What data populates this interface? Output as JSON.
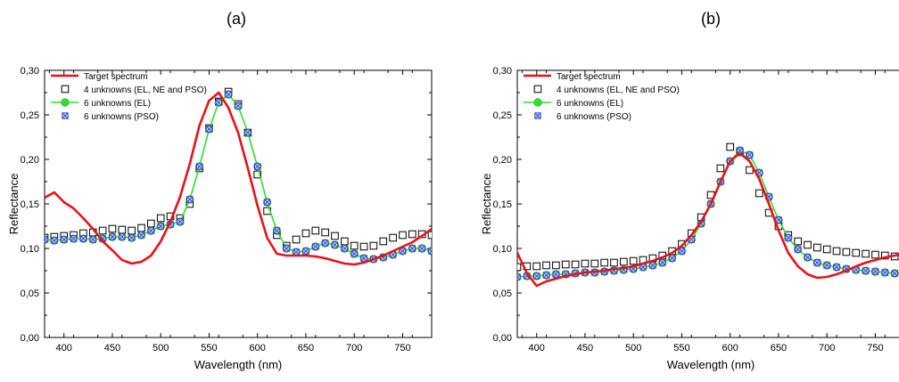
{
  "chart_data": [
    {
      "panel_label": "(a)",
      "type": "line",
      "xlabel": "Wavelength (nm)",
      "ylabel": "Reflectance",
      "xlim": [
        380,
        780
      ],
      "ylim": [
        0,
        0.3
      ],
      "xticks": [
        400,
        450,
        500,
        550,
        600,
        650,
        700,
        750
      ],
      "xtick_labels": [
        "400",
        "450",
        "500",
        "550",
        "600",
        "650",
        "700",
        "750"
      ],
      "yticks": [
        0.0,
        0.05,
        0.1,
        0.15,
        0.2,
        0.25,
        0.3
      ],
      "ytick_labels": [
        "0,00",
        "0,05",
        "0,10",
        "0,15",
        "0,20",
        "0,25",
        "0,30"
      ],
      "grid": false,
      "legend_position": "top-left",
      "series": [
        {
          "name": "Target spectrum",
          "style": "line",
          "color": "#e8121c",
          "x": [
            380,
            390,
            400,
            410,
            420,
            430,
            440,
            450,
            460,
            470,
            480,
            490,
            500,
            510,
            520,
            530,
            540,
            550,
            560,
            570,
            580,
            590,
            600,
            610,
            620,
            630,
            640,
            650,
            660,
            670,
            680,
            690,
            700,
            710,
            720,
            730,
            740,
            750,
            760,
            770,
            780
          ],
          "y": [
            0.157,
            0.163,
            0.152,
            0.145,
            0.134,
            0.122,
            0.108,
            0.098,
            0.087,
            0.083,
            0.085,
            0.092,
            0.108,
            0.13,
            0.158,
            0.195,
            0.238,
            0.266,
            0.275,
            0.258,
            0.23,
            0.19,
            0.148,
            0.112,
            0.094,
            0.092,
            0.092,
            0.092,
            0.091,
            0.089,
            0.086,
            0.083,
            0.082,
            0.084,
            0.088,
            0.092,
            0.097,
            0.102,
            0.107,
            0.114,
            0.122
          ]
        },
        {
          "name": "4 unknowns (EL, NE and PSO)",
          "style": "open-square",
          "color": "#000000",
          "x": [
            380,
            390,
            400,
            410,
            420,
            430,
            440,
            450,
            460,
            470,
            480,
            490,
            500,
            510,
            520,
            530,
            540,
            550,
            560,
            570,
            580,
            590,
            600,
            610,
            620,
            630,
            640,
            650,
            660,
            670,
            680,
            690,
            700,
            710,
            720,
            730,
            740,
            750,
            760,
            770,
            780
          ],
          "y": [
            0.112,
            0.113,
            0.114,
            0.115,
            0.117,
            0.118,
            0.12,
            0.122,
            0.121,
            0.12,
            0.123,
            0.128,
            0.134,
            0.136,
            0.134,
            0.15,
            0.19,
            0.235,
            0.265,
            0.276,
            0.262,
            0.23,
            0.183,
            0.142,
            0.115,
            0.103,
            0.11,
            0.117,
            0.12,
            0.118,
            0.114,
            0.108,
            0.103,
            0.102,
            0.103,
            0.108,
            0.112,
            0.115,
            0.116,
            0.116,
            0.115
          ]
        },
        {
          "name": "6 unknowns (EL)",
          "style": "line-circle",
          "color": "#33dd33",
          "x": [
            380,
            390,
            400,
            410,
            420,
            430,
            440,
            450,
            460,
            470,
            480,
            490,
            500,
            510,
            520,
            530,
            540,
            550,
            560,
            570,
            580,
            590,
            600,
            610,
            620,
            630,
            640,
            650,
            660,
            670,
            680,
            690,
            700,
            710,
            720,
            730,
            740,
            750,
            760,
            770,
            780
          ],
          "y": [
            0.11,
            0.109,
            0.11,
            0.111,
            0.111,
            0.11,
            0.111,
            0.113,
            0.113,
            0.112,
            0.115,
            0.12,
            0.125,
            0.127,
            0.13,
            0.155,
            0.192,
            0.234,
            0.264,
            0.273,
            0.26,
            0.23,
            0.192,
            0.152,
            0.12,
            0.1,
            0.096,
            0.097,
            0.102,
            0.106,
            0.104,
            0.1,
            0.094,
            0.089,
            0.088,
            0.09,
            0.093,
            0.097,
            0.1,
            0.1,
            0.097
          ]
        },
        {
          "name": "6 unknowns (PSO)",
          "style": "crossed-square",
          "color": "#2a44c8",
          "x": [
            380,
            390,
            400,
            410,
            420,
            430,
            440,
            450,
            460,
            470,
            480,
            490,
            500,
            510,
            520,
            530,
            540,
            550,
            560,
            570,
            580,
            590,
            600,
            610,
            620,
            630,
            640,
            650,
            660,
            670,
            680,
            690,
            700,
            710,
            720,
            730,
            740,
            750,
            760,
            770,
            780
          ],
          "y": [
            0.11,
            0.109,
            0.11,
            0.111,
            0.111,
            0.11,
            0.111,
            0.113,
            0.113,
            0.112,
            0.115,
            0.12,
            0.125,
            0.127,
            0.13,
            0.155,
            0.192,
            0.234,
            0.264,
            0.273,
            0.26,
            0.23,
            0.192,
            0.152,
            0.12,
            0.1,
            0.096,
            0.097,
            0.102,
            0.106,
            0.104,
            0.1,
            0.094,
            0.089,
            0.088,
            0.09,
            0.093,
            0.097,
            0.1,
            0.1,
            0.097
          ]
        }
      ]
    },
    {
      "panel_label": "(b)",
      "type": "line",
      "xlabel": "Wavelength (nm)",
      "ylabel": "Reflectance",
      "xlim": [
        380,
        780
      ],
      "ylim": [
        0,
        0.3
      ],
      "xticks": [
        400,
        450,
        500,
        550,
        600,
        650,
        700,
        750
      ],
      "xtick_labels": [
        "400",
        "450",
        "500",
        "550",
        "600",
        "650",
        "700",
        "750"
      ],
      "yticks": [
        0.0,
        0.05,
        0.1,
        0.15,
        0.2,
        0.25,
        0.3
      ],
      "ytick_labels": [
        "0,00",
        "0,05",
        "0,10",
        "0,15",
        "0,20",
        "0,25",
        "0,30"
      ],
      "grid": false,
      "legend_position": "top-left",
      "series": [
        {
          "name": "Target spectrum",
          "style": "line",
          "color": "#e8121c",
          "x": [
            380,
            390,
            400,
            410,
            420,
            430,
            440,
            450,
            460,
            470,
            480,
            490,
            500,
            510,
            520,
            530,
            540,
            550,
            560,
            570,
            580,
            590,
            600,
            610,
            620,
            630,
            640,
            650,
            660,
            670,
            680,
            690,
            700,
            710,
            720,
            730,
            740,
            750,
            760,
            770,
            780
          ],
          "y": [
            0.095,
            0.072,
            0.058,
            0.063,
            0.066,
            0.069,
            0.071,
            0.073,
            0.074,
            0.075,
            0.077,
            0.078,
            0.08,
            0.083,
            0.086,
            0.09,
            0.095,
            0.103,
            0.115,
            0.13,
            0.15,
            0.175,
            0.198,
            0.207,
            0.198,
            0.178,
            0.15,
            0.12,
            0.095,
            0.08,
            0.071,
            0.067,
            0.068,
            0.071,
            0.075,
            0.08,
            0.084,
            0.087,
            0.09,
            0.092,
            0.094
          ]
        },
        {
          "name": "4 unknowns (EL, NE and PSO)",
          "style": "open-square",
          "color": "#000000",
          "x": [
            380,
            390,
            400,
            410,
            420,
            430,
            440,
            450,
            460,
            470,
            480,
            490,
            500,
            510,
            520,
            530,
            540,
            550,
            560,
            570,
            580,
            590,
            600,
            610,
            620,
            630,
            640,
            650,
            660,
            670,
            680,
            690,
            700,
            710,
            720,
            730,
            740,
            750,
            760,
            770,
            780
          ],
          "y": [
            0.079,
            0.08,
            0.08,
            0.081,
            0.081,
            0.082,
            0.082,
            0.083,
            0.083,
            0.084,
            0.084,
            0.085,
            0.086,
            0.087,
            0.089,
            0.092,
            0.097,
            0.105,
            0.117,
            0.135,
            0.16,
            0.19,
            0.214,
            0.208,
            0.188,
            0.162,
            0.14,
            0.125,
            0.115,
            0.108,
            0.104,
            0.101,
            0.099,
            0.097,
            0.096,
            0.095,
            0.094,
            0.093,
            0.092,
            0.091,
            0.09
          ]
        },
        {
          "name": "6 unknowns (EL)",
          "style": "line-circle",
          "color": "#33dd33",
          "x": [
            380,
            390,
            400,
            410,
            420,
            430,
            440,
            450,
            460,
            470,
            480,
            490,
            500,
            510,
            520,
            530,
            540,
            550,
            560,
            570,
            580,
            590,
            600,
            610,
            620,
            630,
            640,
            650,
            660,
            670,
            680,
            690,
            700,
            710,
            720,
            730,
            740,
            750,
            760,
            770,
            780
          ],
          "y": [
            0.068,
            0.069,
            0.069,
            0.07,
            0.071,
            0.071,
            0.072,
            0.073,
            0.073,
            0.074,
            0.075,
            0.076,
            0.077,
            0.079,
            0.081,
            0.084,
            0.089,
            0.097,
            0.11,
            0.128,
            0.15,
            0.175,
            0.198,
            0.21,
            0.205,
            0.185,
            0.158,
            0.132,
            0.112,
            0.099,
            0.09,
            0.084,
            0.081,
            0.079,
            0.077,
            0.076,
            0.075,
            0.074,
            0.073,
            0.072,
            0.072
          ]
        },
        {
          "name": "6 unknowns (PSO)",
          "style": "crossed-square",
          "color": "#2a44c8",
          "x": [
            380,
            390,
            400,
            410,
            420,
            430,
            440,
            450,
            460,
            470,
            480,
            490,
            500,
            510,
            520,
            530,
            540,
            550,
            560,
            570,
            580,
            590,
            600,
            610,
            620,
            630,
            640,
            650,
            660,
            670,
            680,
            690,
            700,
            710,
            720,
            730,
            740,
            750,
            760,
            770,
            780
          ],
          "y": [
            0.068,
            0.069,
            0.069,
            0.07,
            0.071,
            0.071,
            0.072,
            0.073,
            0.073,
            0.074,
            0.075,
            0.076,
            0.077,
            0.079,
            0.081,
            0.084,
            0.089,
            0.097,
            0.11,
            0.128,
            0.15,
            0.175,
            0.198,
            0.21,
            0.205,
            0.185,
            0.158,
            0.132,
            0.112,
            0.099,
            0.09,
            0.084,
            0.081,
            0.079,
            0.077,
            0.076,
            0.075,
            0.074,
            0.073,
            0.072,
            0.072
          ]
        }
      ]
    }
  ]
}
